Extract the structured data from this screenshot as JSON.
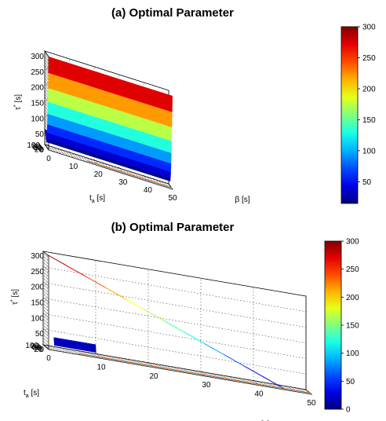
{
  "chart_data": [
    {
      "type": "surface3d",
      "title": "(a) Optimal Parameter",
      "xlabel": "β [s]",
      "ylabel": "t_a [s]",
      "zlabel": "τ* [s]",
      "x_ticks": [
        0,
        10,
        20,
        30,
        40,
        50
      ],
      "y_ticks": [
        20,
        40,
        60,
        80,
        100
      ],
      "z_ticks": [
        0,
        50,
        100,
        150,
        200,
        250,
        300
      ],
      "xlim": [
        0,
        50
      ],
      "ylim": [
        0,
        100
      ],
      "zlim": [
        0,
        300
      ],
      "colorbar_ticks": [
        50,
        100,
        150,
        200,
        250,
        300
      ],
      "colorbar_range": [
        15,
        300
      ],
      "grid": true,
      "surface_description_values": {
        "t_a_grid": [
          100,
          80,
          60,
          40,
          20,
          0
        ],
        "beta_grid": [
          0,
          10,
          20,
          30,
          40,
          50
        ],
        "tau_max": 300,
        "tau_min": 15
      }
    },
    {
      "type": "surface3d",
      "title": "(b) Optimal Parameter",
      "xlabel": "β [s]",
      "ylabel": "t_a [s]",
      "zlabel": "τ* [s]",
      "x_ticks": [
        0,
        10,
        20,
        30,
        40,
        50
      ],
      "y_ticks": [
        20,
        40,
        60,
        80,
        100
      ],
      "z_ticks": [
        0,
        50,
        100,
        150,
        200,
        250,
        300
      ],
      "xlim": [
        0,
        50
      ],
      "ylim": [
        0,
        100
      ],
      "zlim": [
        0,
        300
      ],
      "colorbar_ticks": [
        0,
        50,
        100,
        150,
        200,
        250,
        300
      ],
      "colorbar_range": [
        0,
        300
      ],
      "grid": true
    }
  ],
  "labels": {
    "z_sym": "τ",
    "z_sup": "*",
    "z_unit": "[s]",
    "y_sym": "t",
    "y_sub": "a",
    "y_unit": "[s]",
    "x_label_a": "β [s]",
    "x_label_b": "[s]"
  }
}
